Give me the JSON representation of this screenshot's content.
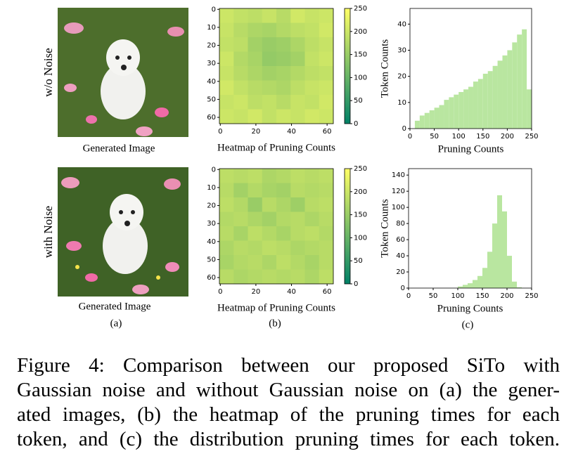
{
  "figure": {
    "panels": [
      {
        "row_label": "w/o Noise",
        "image": {
          "caption": "Generated Image"
        },
        "heatmap": {
          "type": "heatmap",
          "xlabel": "Heatmap of Pruning Counts",
          "colormap": "summer",
          "grid": [
            [
              200,
              190,
              185,
              195,
              180,
              205,
              195,
              200
            ],
            [
              195,
              180,
              170,
              165,
              175,
              185,
              190,
              205
            ],
            [
              190,
              185,
              160,
              150,
              155,
              170,
              185,
              195
            ],
            [
              200,
              175,
              165,
              145,
              150,
              160,
              190,
              200
            ],
            [
              195,
              180,
              170,
              160,
              165,
              175,
              185,
              190
            ],
            [
              205,
              190,
              180,
              175,
              170,
              185,
              195,
              200
            ],
            [
              195,
              200,
              185,
              190,
              180,
              195,
              190,
              205
            ],
            [
              200,
              195,
              205,
              190,
              200,
              195,
              205,
              200
            ]
          ],
          "xlim": [
            -0.5,
            63.5
          ],
          "ylim": [
            63.5,
            -0.5
          ],
          "xticks": [
            0,
            20,
            40,
            60
          ],
          "yticks": [
            0,
            10,
            20,
            30,
            40,
            50,
            60
          ],
          "clim": [
            0,
            250
          ],
          "cticks": [
            0,
            50,
            100,
            150,
            200,
            250
          ]
        },
        "histogram": {
          "type": "histogram",
          "xlabel": "Pruning Counts",
          "ylabel": "Token Counts",
          "color": "#b9e6a0",
          "bins": [
            0,
            10,
            20,
            30,
            40,
            50,
            60,
            70,
            80,
            90,
            100,
            110,
            120,
            130,
            140,
            150,
            160,
            170,
            180,
            190,
            200,
            210,
            220,
            230,
            240,
            250
          ],
          "counts": [
            0,
            3,
            5,
            6,
            7,
            8,
            9,
            11,
            12,
            13,
            14,
            15,
            16,
            18,
            19,
            21,
            22,
            24,
            26,
            28,
            30,
            33,
            36,
            38,
            15
          ],
          "xlim": [
            0,
            250
          ],
          "ylim": [
            0,
            46
          ],
          "xticks": [
            0,
            50,
            100,
            150,
            200,
            250
          ],
          "yticks": [
            0,
            10,
            20,
            30,
            40
          ]
        }
      },
      {
        "row_label": "with Noise",
        "image": {
          "caption": "Generated Image"
        },
        "heatmap": {
          "type": "heatmap",
          "xlabel": "Heatmap of Pruning Counts",
          "colormap": "summer",
          "grid": [
            [
              185,
              180,
              185,
              170,
              175,
              185,
              180,
              185
            ],
            [
              180,
              160,
              175,
              165,
              160,
              180,
              175,
              180
            ],
            [
              185,
              175,
              150,
              180,
              170,
              155,
              180,
              185
            ],
            [
              175,
              180,
              170,
              160,
              175,
              180,
              170,
              180
            ],
            [
              180,
              165,
              185,
              175,
              165,
              180,
              185,
              175
            ],
            [
              170,
              180,
              175,
              185,
              180,
              170,
              175,
              180
            ],
            [
              165,
              175,
              180,
              170,
              185,
              175,
              165,
              180
            ],
            [
              180,
              170,
              175,
              180,
              175,
              180,
              170,
              185
            ]
          ],
          "xlim": [
            -0.5,
            63.5
          ],
          "ylim": [
            63.5,
            -0.5
          ],
          "xticks": [
            0,
            20,
            40,
            60
          ],
          "yticks": [
            0,
            10,
            20,
            30,
            40,
            50,
            60
          ],
          "clim": [
            0,
            250
          ],
          "cticks": [
            0,
            50,
            100,
            150,
            200,
            250
          ]
        },
        "histogram": {
          "type": "histogram",
          "xlabel": "Pruning Counts",
          "ylabel": "Token Counts",
          "color": "#b9e6a0",
          "bins": [
            0,
            10,
            20,
            30,
            40,
            50,
            60,
            70,
            80,
            90,
            100,
            110,
            120,
            130,
            140,
            150,
            160,
            170,
            180,
            190,
            200,
            210,
            220,
            230,
            240,
            250
          ],
          "counts": [
            0,
            0,
            0,
            0,
            0,
            0,
            0,
            0,
            0,
            0,
            2,
            4,
            6,
            10,
            15,
            25,
            45,
            80,
            115,
            95,
            40,
            8,
            1,
            0,
            0
          ],
          "xlim": [
            0,
            250
          ],
          "ylim": [
            0,
            148
          ],
          "xticks": [
            0,
            50,
            100,
            150,
            200,
            250
          ],
          "yticks": [
            0,
            20,
            40,
            60,
            80,
            100,
            120,
            140
          ]
        }
      }
    ],
    "sublabels": [
      "(a)",
      "(b)",
      "(c)"
    ],
    "caption_lines": [
      "Figure 4: Comparison between our proposed SiTo with",
      "Gaussian noise and without Gaussian noise on (a) the gener-",
      "ated images,  (b) the heatmap of the pruning times for each",
      "token, and (c) the distribution pruning times for each token."
    ]
  }
}
